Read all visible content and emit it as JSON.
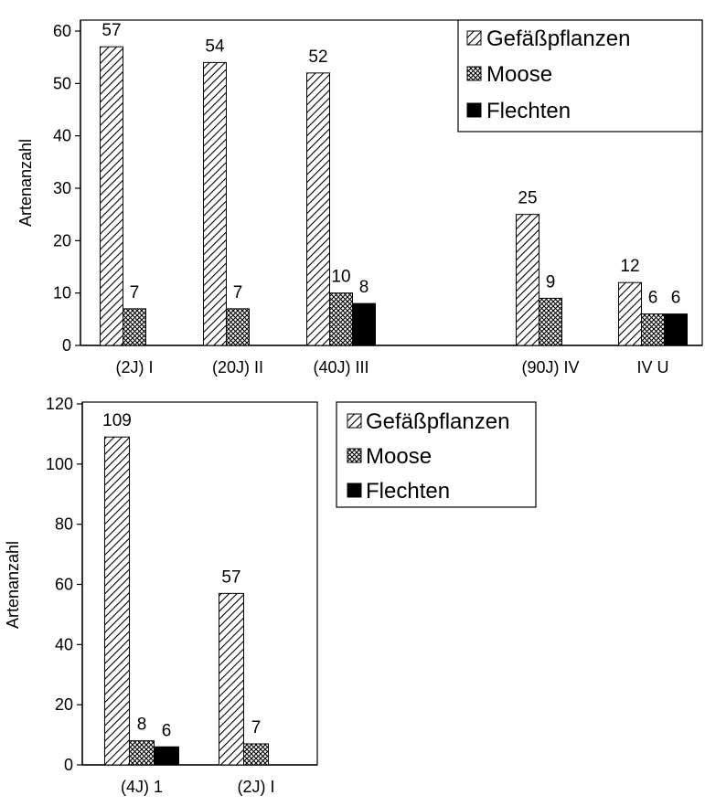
{
  "chart_data": [
    {
      "type": "bar",
      "ylabel": "Artenanzahl",
      "ylim": [
        0,
        60
      ],
      "yticks": [
        0,
        10,
        20,
        30,
        40,
        50,
        60
      ],
      "categories": [
        "(2J) I",
        "(20J) II",
        "(40J) III",
        "",
        "(90J) IV",
        "IV U"
      ],
      "series": [
        {
          "name": "Gefäßpflanzen",
          "pattern": "diagonal-hatch",
          "values": [
            57,
            54,
            52,
            null,
            25,
            12
          ]
        },
        {
          "name": "Moose",
          "pattern": "crosshatch",
          "values": [
            7,
            7,
            10,
            null,
            9,
            6
          ]
        },
        {
          "name": "Flechten",
          "pattern": "solid-black",
          "values": [
            null,
            null,
            8,
            null,
            null,
            6
          ]
        }
      ],
      "legend_position": "top-right",
      "grid": false
    },
    {
      "type": "bar",
      "ylabel": "Artenanzahl",
      "ylim": [
        0,
        120
      ],
      "yticks": [
        0,
        20,
        40,
        60,
        80,
        100,
        120
      ],
      "categories": [
        "(4J) 1",
        "(2J) I"
      ],
      "series": [
        {
          "name": "Gefäßpflanzen",
          "pattern": "diagonal-hatch",
          "values": [
            109,
            57
          ]
        },
        {
          "name": "Moose",
          "pattern": "crosshatch",
          "values": [
            8,
            7
          ]
        },
        {
          "name": "Flechten",
          "pattern": "solid-black",
          "values": [
            6,
            null
          ]
        }
      ],
      "legend_position": "right-outside",
      "grid": false
    }
  ]
}
